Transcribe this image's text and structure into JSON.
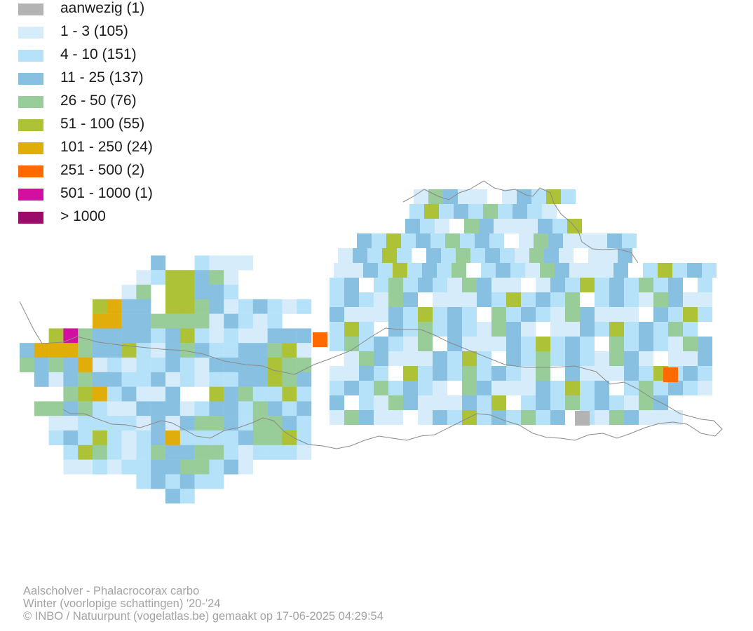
{
  "legend": {
    "items": [
      {
        "label": "aanwezig (1)",
        "color": "#b3b3b3",
        "class": "present"
      },
      {
        "label": "1 - 3 (105)",
        "color": "#d6ecfa",
        "class": "c1"
      },
      {
        "label": "4 - 10 (151)",
        "color": "#b5e2f8",
        "class": "c2"
      },
      {
        "label": "11 - 25 (137)",
        "color": "#87c0e0",
        "class": "c3"
      },
      {
        "label": "26 - 50 (76)",
        "color": "#98cc98",
        "class": "c4"
      },
      {
        "label": "51 - 100 (55)",
        "color": "#adc236",
        "class": "c5"
      },
      {
        "label": "101 - 250 (24)",
        "color": "#e0ad0a",
        "class": "c6"
      },
      {
        "label": "251 - 500 (2)",
        "color": "#ff6a00",
        "class": "c7"
      },
      {
        "label": "501 - 1000 (1)",
        "color": "#d1109f",
        "class": "c8"
      },
      {
        "label": "> 1000",
        "color": "#9e0a6c",
        "class": "c9"
      }
    ]
  },
  "map": {
    "border_color": "#8a8a8a",
    "grid_cells": [
      "c5,0,0",
      "c6,1,0",
      "c6,1,1",
      "c6,2,0",
      "c6,2,1",
      "c1,2,2",
      "c3,3,0",
      "c3,3,1",
      "c3,4,0",
      "c3,4,1",
      "c3,4,2",
      "c1,5,1",
      "c4,5,2",
      "c5,6,0",
      "c5,6,1",
      "c3,6,2",
      "c3,7,0",
      "c1,7,1",
      "c3,7,2"
    ],
    "cells_note_removed": true
  },
  "caption": {
    "line1": "Aalscholver - Phalacrocorax carbo",
    "line2": "Winter (voorlopige schattingen) '20-'24",
    "line3": "© INBO / Natuurpunt (vogelatlas.be) gemaakt op 17-06-2025 04:29:54"
  }
}
